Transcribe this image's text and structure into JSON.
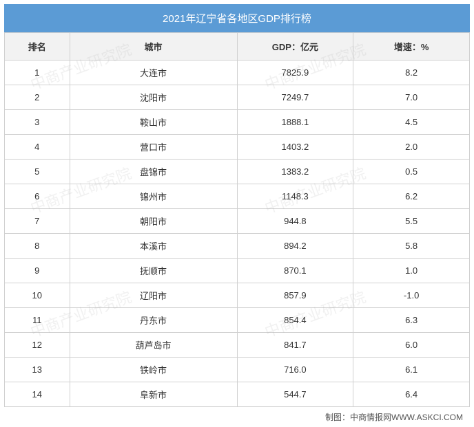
{
  "title": "2021年辽宁省各地区GDP排行榜",
  "columns": [
    "排名",
    "城市",
    "GDP：亿元",
    "增速：%"
  ],
  "column_widths_pct": [
    14,
    36,
    25,
    25
  ],
  "rows": [
    [
      "1",
      "大连市",
      "7825.9",
      "8.2"
    ],
    [
      "2",
      "沈阳市",
      "7249.7",
      "7.0"
    ],
    [
      "3",
      "鞍山市",
      "1888.1",
      "4.5"
    ],
    [
      "4",
      "营口市",
      "1403.2",
      "2.0"
    ],
    [
      "5",
      "盘锦市",
      "1383.2",
      "0.5"
    ],
    [
      "6",
      "锦州市",
      "1148.3",
      "6.2"
    ],
    [
      "7",
      "朝阳市",
      "944.8",
      "5.5"
    ],
    [
      "8",
      "本溪市",
      "894.2",
      "5.8"
    ],
    [
      "9",
      "抚顺市",
      "870.1",
      "1.0"
    ],
    [
      "10",
      "辽阳市",
      "857.9",
      "-1.0"
    ],
    [
      "11",
      "丹东市",
      "854.4",
      "6.3"
    ],
    [
      "12",
      "葫芦岛市",
      "841.7",
      "6.0"
    ],
    [
      "13",
      "铁岭市",
      "716.0",
      "6.1"
    ],
    [
      "14",
      "阜新市",
      "544.7",
      "6.4"
    ]
  ],
  "footer": "制图：中商情报网WWW.ASKCI.COM",
  "watermark_text": "中商产业研究院",
  "colors": {
    "title_bg": "#5b9bd5",
    "title_text": "#ffffff",
    "header_bg": "#f2f2f2",
    "border": "#d0d0d0",
    "cell_text": "#333333",
    "cell_bg": "#ffffff",
    "footer_text": "#555555",
    "watermark": "rgba(180,180,180,0.18)"
  },
  "font_sizes": {
    "title": 15,
    "header": 13,
    "cell": 13,
    "footer": 12,
    "watermark": 22
  }
}
